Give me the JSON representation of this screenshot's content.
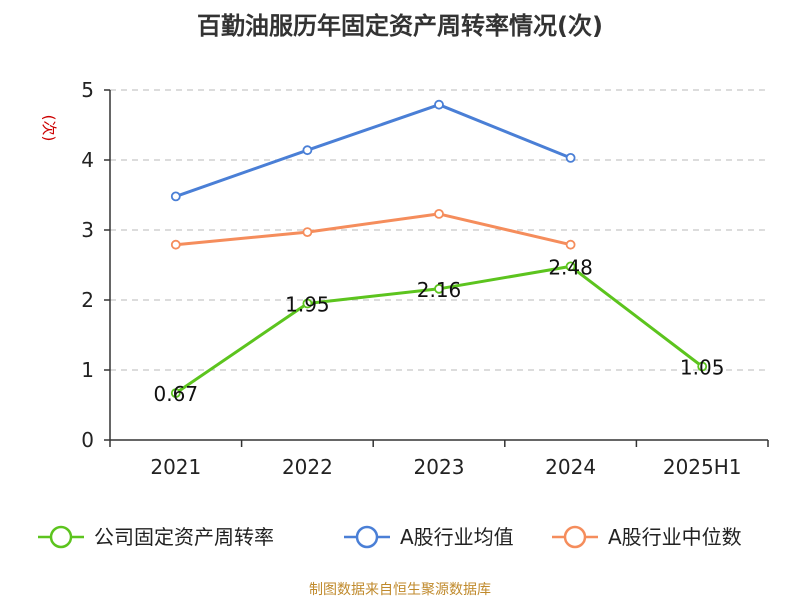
{
  "source_note": "制图数据来自恒生聚源数据库",
  "chart_data": {
    "type": "line",
    "title": "百勤油服历年固定资产周转率情况(次)",
    "ylabel": "(次)",
    "xlabel": "",
    "ylim": [
      0,
      5
    ],
    "yticks": [
      "0",
      "1",
      "2",
      "3",
      "4",
      "5"
    ],
    "categories": [
      "2021",
      "2022",
      "2023",
      "2024",
      "2025H1"
    ],
    "grid": true,
    "legend_position": "bottom",
    "series": [
      {
        "name": "公司固定资产周转率",
        "color": "#5cc41e",
        "values": [
          0.67,
          1.95,
          2.16,
          2.48,
          1.05
        ],
        "labels": [
          "0.67",
          "1.95",
          "2.16",
          "2.48",
          "1.05"
        ]
      },
      {
        "name": "A股行业均值",
        "color": "#4a7fd6",
        "values": [
          3.48,
          4.14,
          4.79,
          4.03,
          null
        ]
      },
      {
        "name": "A股行业中位数",
        "color": "#f58d5c",
        "values": [
          2.79,
          2.97,
          3.23,
          2.79,
          null
        ]
      }
    ]
  }
}
